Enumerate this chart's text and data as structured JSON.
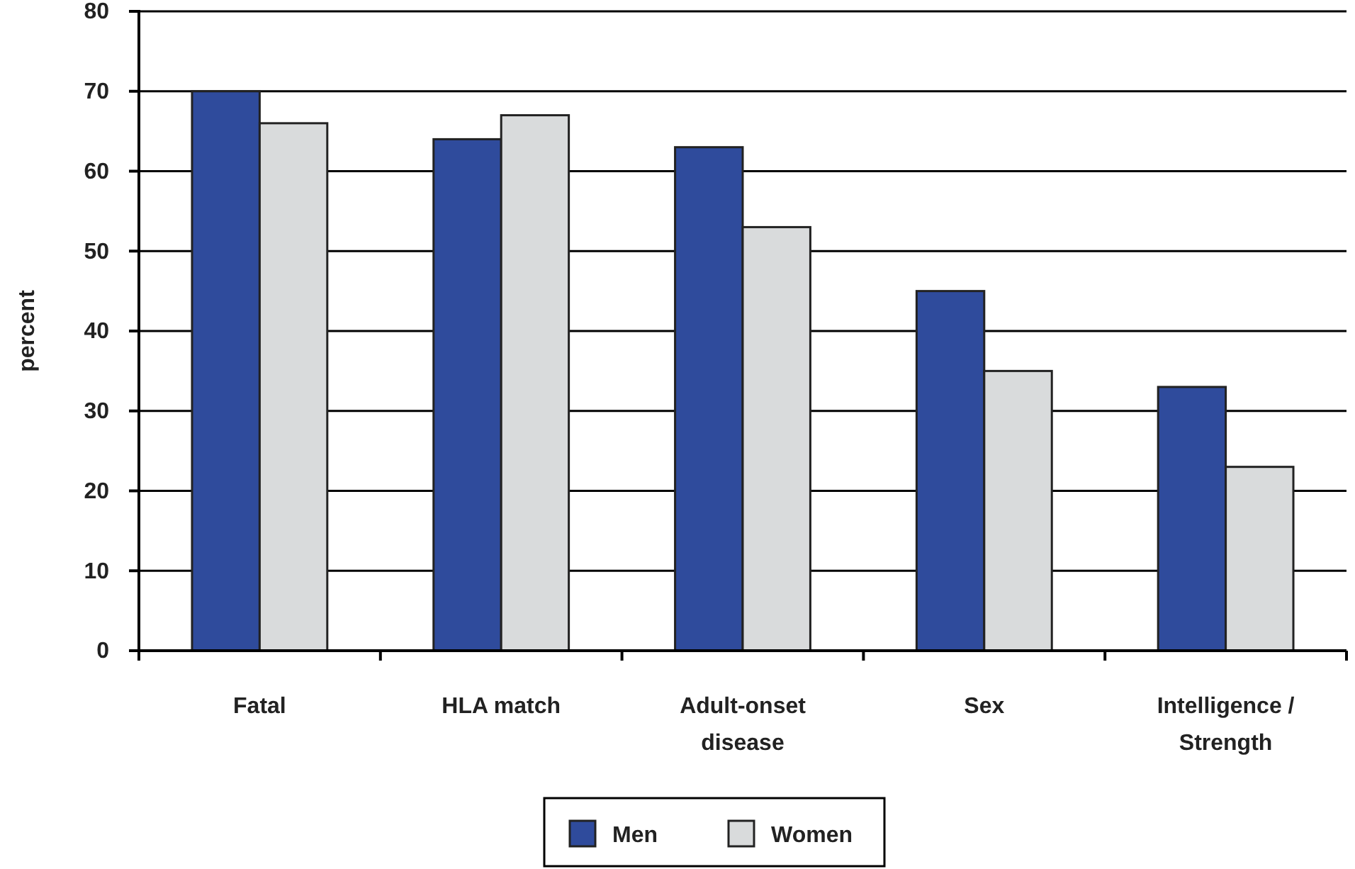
{
  "chart_data": {
    "type": "bar",
    "ylabel": "percent",
    "categories": [
      "Fatal",
      "HLA match",
      "Adult-onset\ndisease",
      "Sex",
      "Intelligence /\nStrength"
    ],
    "series": [
      {
        "name": "Men",
        "color": "#2f4b9c",
        "values": [
          70,
          64,
          63,
          45,
          33
        ]
      },
      {
        "name": "Women",
        "color": "#d9dbdc",
        "values": [
          66,
          67,
          53,
          35,
          23
        ]
      }
    ],
    "ylim": [
      0,
      80
    ],
    "yticks": [
      0,
      10,
      20,
      30,
      40,
      50,
      60,
      70,
      80
    ],
    "grid": "y",
    "legend": "bottom"
  }
}
